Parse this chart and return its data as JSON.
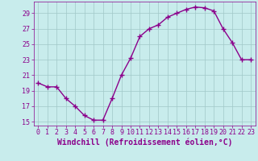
{
  "x": [
    0,
    1,
    2,
    3,
    4,
    5,
    6,
    7,
    8,
    9,
    10,
    11,
    12,
    13,
    14,
    15,
    16,
    17,
    18,
    19,
    20,
    21,
    22,
    23
  ],
  "y": [
    20.0,
    19.5,
    19.5,
    18.0,
    17.0,
    15.8,
    15.2,
    15.2,
    18.0,
    21.0,
    23.2,
    26.0,
    27.0,
    27.5,
    28.5,
    29.0,
    29.5,
    29.8,
    29.7,
    29.3,
    27.0,
    25.2,
    23.0,
    23.0
  ],
  "line_color": "#8B008B",
  "marker": "+",
  "marker_size": 4,
  "bg_color": "#c8ecec",
  "grid_color": "#a0c8c8",
  "tick_color": "#8B008B",
  "xlabel": "Windchill (Refroidissement éolien,°C)",
  "xlabel_fontsize": 7,
  "ylim": [
    14.5,
    30.5
  ],
  "xlim": [
    -0.5,
    23.5
  ],
  "yticks": [
    15,
    17,
    19,
    21,
    23,
    25,
    27,
    29
  ],
  "xticks": [
    0,
    1,
    2,
    3,
    4,
    5,
    6,
    7,
    8,
    9,
    10,
    11,
    12,
    13,
    14,
    15,
    16,
    17,
    18,
    19,
    20,
    21,
    22,
    23
  ],
  "tick_fontsize": 6,
  "linewidth": 1.0,
  "marker_color": "#8B008B"
}
